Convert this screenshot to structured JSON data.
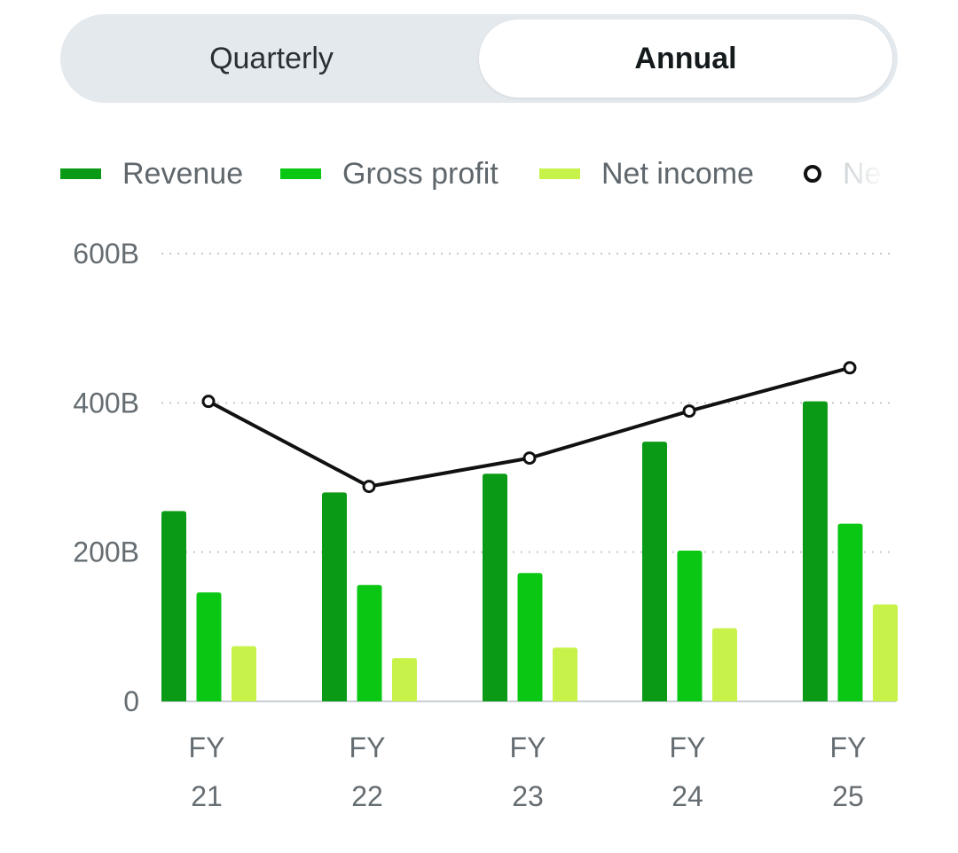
{
  "toggle": {
    "options": [
      "Quarterly",
      "Annual"
    ],
    "selected": "Annual"
  },
  "legend": {
    "items": [
      {
        "label": "Revenue",
        "color": "#0a9a16",
        "shape": "bar"
      },
      {
        "label": "Gross profit",
        "color": "#0ac714",
        "shape": "bar"
      },
      {
        "label": "Net income",
        "color": "#c7f24a",
        "shape": "bar"
      },
      {
        "label": "Ne",
        "color": "#111111",
        "shape": "dot"
      }
    ]
  },
  "chart_data": {
    "type": "bar",
    "categories": [
      [
        "FY",
        "21"
      ],
      [
        "FY",
        "22"
      ],
      [
        "FY",
        "23"
      ],
      [
        "FY",
        "24"
      ],
      [
        "FY",
        "25"
      ]
    ],
    "y_ticks": [
      "0",
      "200B",
      "400B",
      "600B"
    ],
    "y_tick_values": [
      0,
      200,
      400,
      600
    ],
    "ylim": [
      0,
      600
    ],
    "grid": true,
    "legend_position": "top",
    "series": [
      {
        "name": "Revenue",
        "color": "#0a9a16",
        "values": [
          255,
          280,
          305,
          348,
          402
        ]
      },
      {
        "name": "Gross profit",
        "color": "#0ac714",
        "values": [
          146,
          156,
          172,
          202,
          238
        ]
      },
      {
        "name": "Net income",
        "color": "#c7f24a",
        "values": [
          74,
          58,
          72,
          98,
          130
        ]
      }
    ],
    "line_series": {
      "color": "#111111",
      "values": [
        402,
        288,
        326,
        389,
        447
      ]
    }
  }
}
